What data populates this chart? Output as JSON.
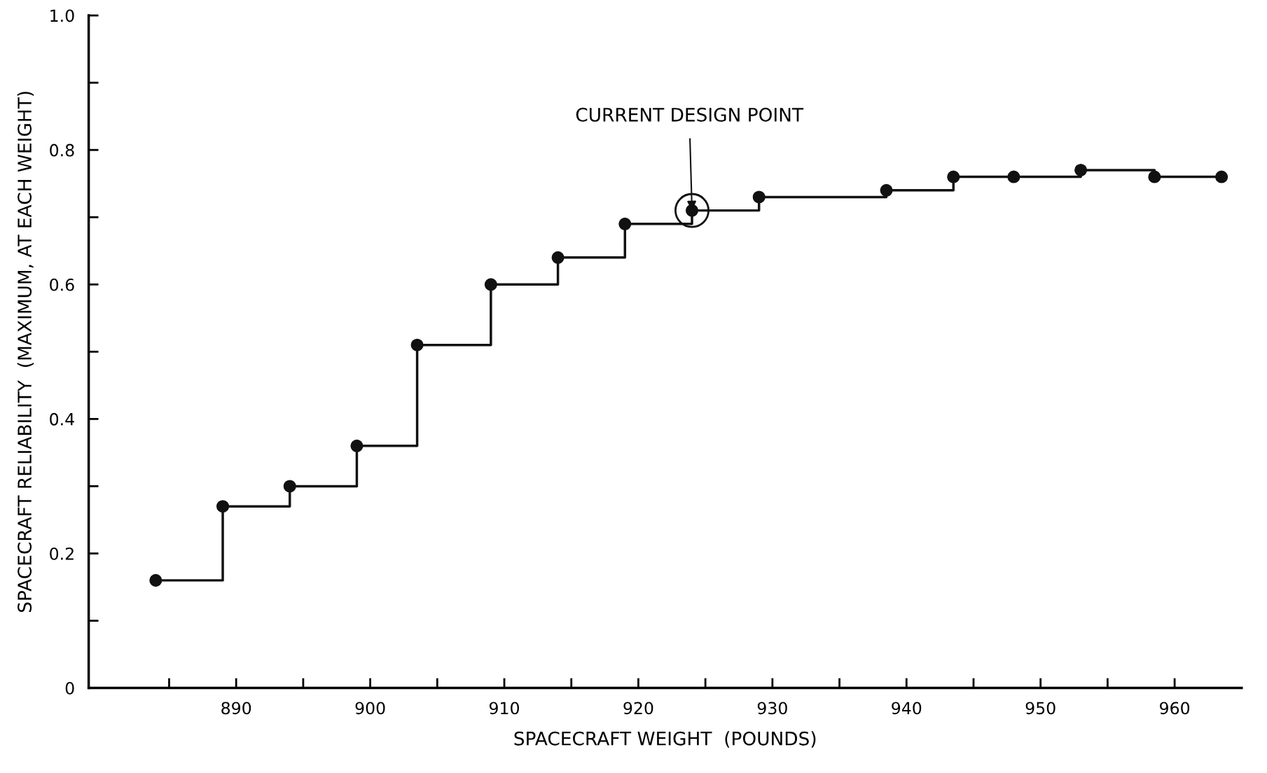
{
  "chart_data": {
    "type": "step",
    "xlabel": "SPACECRAFT WEIGHT  (POUNDS)",
    "ylabel": "SPACECRAFT RELIABILITY  (MAXIMUM, AT EACH WEIGHT)",
    "x": [
      884,
      889,
      894,
      899,
      903.5,
      909,
      914,
      919,
      924,
      929,
      938.5,
      943.5,
      948,
      953,
      958.5,
      963.5
    ],
    "values": [
      0.16,
      0.27,
      0.3,
      0.36,
      0.51,
      0.6,
      0.64,
      0.69,
      0.71,
      0.73,
      0.74,
      0.76,
      0.76,
      0.77,
      0.76,
      0.76
    ],
    "color": "#111111",
    "marker": "circle",
    "line_style": "solid",
    "grid": false,
    "xlim": [
      879,
      965
    ],
    "xticks": [
      {
        "value": 885,
        "label": null
      },
      890,
      {
        "value": 895,
        "label": null
      },
      900,
      {
        "value": 905,
        "label": null
      },
      910,
      {
        "value": 915,
        "label": null
      },
      920,
      {
        "value": 925,
        "label": null
      },
      930,
      {
        "value": 935,
        "label": null
      },
      940,
      {
        "value": 945,
        "label": null
      },
      950,
      {
        "value": 955,
        "label": null
      },
      960
    ],
    "ylim": [
      0,
      1
    ],
    "yticks": [
      0,
      {
        "value": 0.1,
        "label": null
      },
      0.2,
      {
        "value": 0.3,
        "label": null
      },
      0.4,
      {
        "value": 0.5,
        "label": null
      },
      0.6,
      {
        "value": 0.7,
        "label": null
      },
      0.8,
      {
        "value": 0.9,
        "label": null
      },
      {
        "value": 1,
        "label": "1.0"
      }
    ],
    "annotations": [
      {
        "text": "CURRENT DESIGN POINT",
        "x": 924,
        "y": 0.71
      }
    ]
  }
}
